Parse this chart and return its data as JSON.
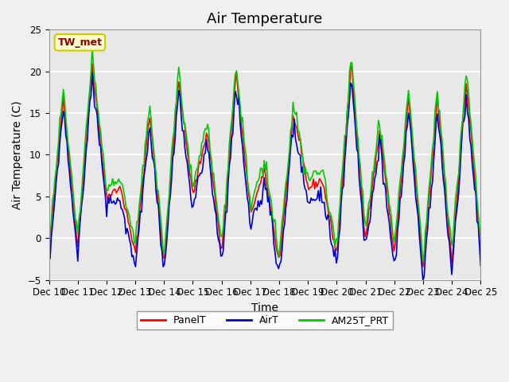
{
  "title": "Air Temperature",
  "ylabel": "Air Temperature (C)",
  "xlabel": "Time",
  "annotation_text": "TW_met",
  "annotation_color": "#8B0000",
  "annotation_bg": "#FFFFCC",
  "annotation_border": "#CCCC00",
  "ylim": [
    -5,
    25
  ],
  "xlim": [
    0,
    15
  ],
  "xtick_labels": [
    "Dec 10",
    "Dec 11",
    "Dec 12",
    "Dec 13",
    "Dec 14",
    "Dec 15",
    "Dec 16",
    "Dec 17",
    "Dec 18",
    "Dec 19",
    "Dec 20",
    "Dec 21",
    "Dec 22",
    "Dec 23",
    "Dec 24",
    "Dec 25"
  ],
  "legend_labels": [
    "PanelT",
    "AirT",
    "AM25T_PRT"
  ],
  "legend_colors": [
    "#FF0000",
    "#0000CC",
    "#00CC00"
  ],
  "line_width": 1.2,
  "bg_color": "#E8E8E8",
  "grid_color": "#FFFFFF",
  "title_fontsize": 13,
  "label_fontsize": 10,
  "tick_fontsize": 8.5
}
